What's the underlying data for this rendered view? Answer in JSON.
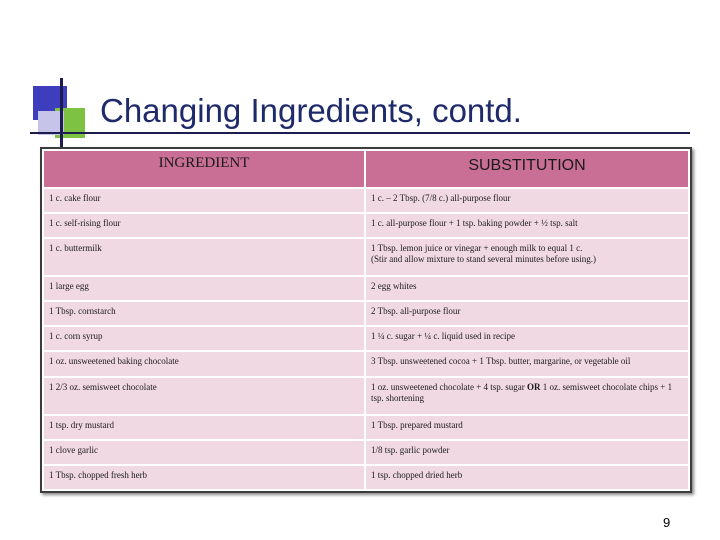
{
  "slide": {
    "title": "Changing Ingredients, contd.",
    "page_number": "9"
  },
  "table": {
    "headers": [
      "INGREDIENT",
      "SUBSTITUTION"
    ],
    "rows": [
      {
        "ingredient": "1 c. cake flour",
        "substitution": "1 c. – 2 Tbsp. (7/8 c.) all-purpose flour"
      },
      {
        "ingredient": "1 c. self-rising flour",
        "substitution": "1 c. all-purpose flour + 1 tsp. baking powder + ½ tsp. salt"
      },
      {
        "ingredient": "1 c. buttermilk",
        "substitution_line1": "1 Tbsp. lemon juice or vinegar + enough milk to equal 1 c.",
        "substitution_line2": "(Stir and allow mixture to stand several minutes before using.)"
      },
      {
        "ingredient": "1 large egg",
        "substitution": "2 egg whites"
      },
      {
        "ingredient": "1 Tbsp. cornstarch",
        "substitution": "2 Tbsp. all-purpose flour"
      },
      {
        "ingredient": "1 c. corn syrup",
        "substitution": "1 ¼ c. sugar + ¼ c. liquid used in recipe"
      },
      {
        "ingredient": "1 oz. unsweetened baking chocolate",
        "substitution": "3 Tbsp. unsweetened cocoa + 1 Tbsp. butter, margarine, or vegetable oil"
      },
      {
        "ingredient": "1 2/3 oz. semisweet chocolate",
        "substitution_before": "1 oz. unsweetened chocolate + 4 tsp. sugar ",
        "substitution_or": "OR",
        "substitution_after": " 1 oz. semisweet chocolate chips + 1 tsp. shortening"
      },
      {
        "ingredient": "1 tsp. dry mustard",
        "substitution": "1 Tbsp. prepared mustard"
      },
      {
        "ingredient": "1 clove garlic",
        "substitution": "1/8 tsp. garlic powder"
      },
      {
        "ingredient": "1 Tbsp. chopped fresh herb",
        "substitution": "1 tsp. chopped dried herb"
      }
    ]
  }
}
